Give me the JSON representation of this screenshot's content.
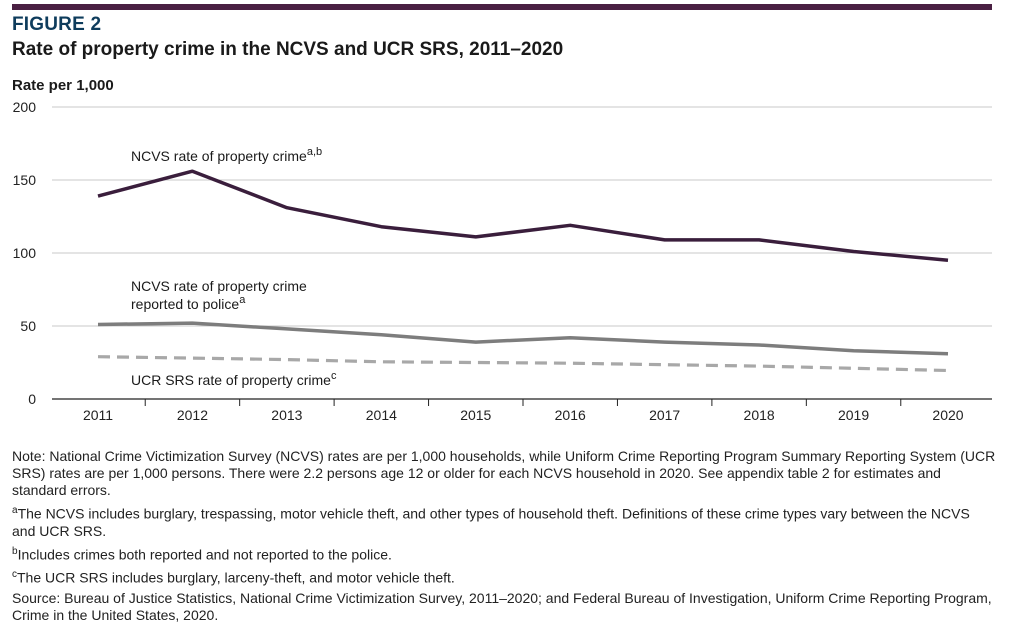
{
  "figure": {
    "label": "FIGURE 2",
    "title": "Rate of property crime in the NCVS and UCR SRS, 2011–2020",
    "accent_color": "#4a2043",
    "label_color": "#0e3c5c"
  },
  "chart_data": {
    "type": "line",
    "ylabel": "Rate per 1,000",
    "xlabel": "",
    "ylim": [
      0,
      200
    ],
    "yticks": [
      "0",
      "50",
      "100",
      "150",
      "200"
    ],
    "grid": true,
    "x": [
      "2011",
      "2012",
      "2013",
      "2014",
      "2015",
      "2016",
      "2017",
      "2018",
      "2019",
      "2020"
    ],
    "series": [
      {
        "name": "NCVS rate of property crime",
        "name_sup": "a,b",
        "color": "#3a1e3c",
        "style": "solid",
        "values": [
          139,
          156,
          131,
          118,
          111,
          119,
          109,
          109,
          101,
          95
        ]
      },
      {
        "name": "NCVS rate of property crime reported to police",
        "name_line1": "NCVS rate of property crime",
        "name_line2": "reported to police",
        "name_sup": "a",
        "color": "#7d7d7d",
        "style": "solid",
        "values": [
          51,
          52,
          48,
          44,
          39,
          42,
          39,
          37,
          33,
          31
        ]
      },
      {
        "name": "UCR SRS rate of property crime",
        "name_sup": "c",
        "color": "#a8a8a8",
        "style": "dashed",
        "values": [
          29,
          28,
          27,
          25.5,
          25,
          24.5,
          23.5,
          22.5,
          21,
          19.5
        ]
      }
    ]
  },
  "notes": {
    "note": "Note: National Crime Victimization Survey (NCVS) rates are per 1,000 households, while Uniform Crime Reporting Program Summary Reporting System (UCR SRS) rates are per 1,000 persons. There were 2.2 persons age 12 or older for each NCVS household in 2020. See appendix table 2 for estimates and standard errors.",
    "a_mark": "a",
    "a_text": "The NCVS includes burglary, trespassing, motor vehicle theft, and other types of household theft. Definitions of these crime types vary between the NCVS and UCR SRS.",
    "b_mark": "b",
    "b_text": "Includes crimes both reported and not reported to the police.",
    "c_mark": "c",
    "c_text": "The UCR SRS includes burglary, larceny-theft, and motor vehicle theft.",
    "source": "Source: Bureau of Justice Statistics, National Crime Victimization Survey, 2011–2020; and Federal Bureau of Investigation, Uniform Crime Reporting Program, Crime in the United States, 2020."
  }
}
